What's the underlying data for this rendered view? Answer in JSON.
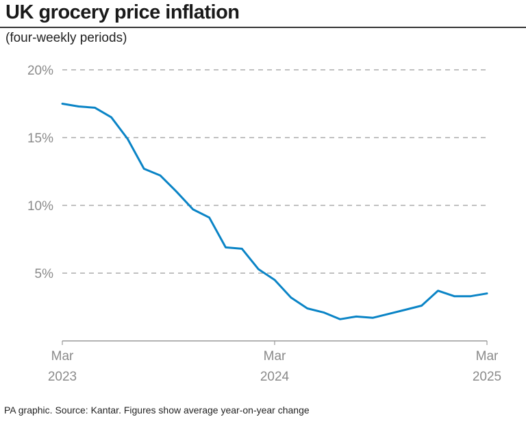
{
  "title": "UK grocery price inflation",
  "subtitle": "(four-weekly periods)",
  "footer": "PA graphic. Source: Kantar. Figures show average year-on-year change",
  "chart_data": {
    "type": "line",
    "title": "UK grocery price inflation",
    "subtitle": "(four-weekly periods)",
    "xlabel": "",
    "ylabel": "",
    "ylim": [
      0,
      20
    ],
    "y_ticks": [
      5,
      10,
      15,
      20
    ],
    "y_tick_labels": [
      "5%",
      "10%",
      "15%",
      "20%"
    ],
    "x_ticks": [
      {
        "line1": "Mar",
        "line2": "2023",
        "index": 0
      },
      {
        "line1": "Mar",
        "line2": "2024",
        "index": 13
      },
      {
        "line1": "Mar",
        "line2": "2025",
        "index": 26
      }
    ],
    "grid": "horizontal dashed",
    "line_color": "#0a84c6",
    "series": [
      {
        "values": [
          17.5,
          17.3,
          17.2,
          16.5,
          14.9,
          12.7,
          12.2,
          11.0,
          9.7,
          9.1,
          6.9,
          6.8,
          5.3,
          4.5,
          3.2,
          2.4,
          2.1,
          1.6,
          1.8,
          1.7,
          2.0,
          2.3,
          2.6,
          3.7,
          3.3,
          3.3,
          3.5
        ]
      }
    ]
  }
}
